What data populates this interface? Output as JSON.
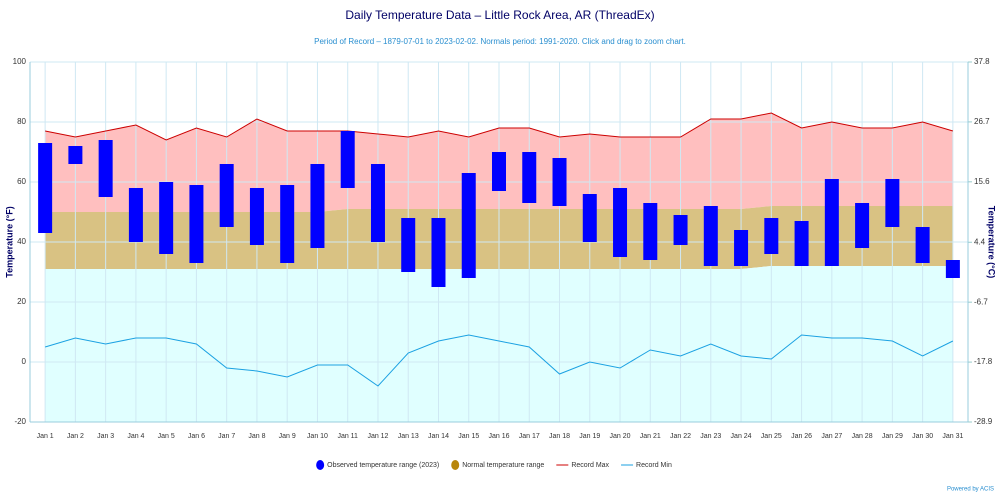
{
  "chart_data": {
    "type": "temperature-range",
    "title": "Daily Temperature Data – Little Rock Area, AR (ThreadEx)",
    "subtitle": "Period of Record – 1879-07-01 to 2023-02-02. Normals period: 1991-2020. Click and drag to zoom chart.",
    "ylabel": "Temperature (°F)",
    "y2label": "Temperature (°C)",
    "footer": "Powered by ACIS",
    "categories": [
      "Jan 1",
      "Jan 2",
      "Jan 3",
      "Jan 4",
      "Jan 5",
      "Jan 6",
      "Jan 7",
      "Jan 8",
      "Jan 9",
      "Jan 10",
      "Jan 11",
      "Jan 12",
      "Jan 13",
      "Jan 14",
      "Jan 15",
      "Jan 16",
      "Jan 17",
      "Jan 18",
      "Jan 19",
      "Jan 20",
      "Jan 21",
      "Jan 22",
      "Jan 23",
      "Jan 24",
      "Jan 25",
      "Jan 26",
      "Jan 27",
      "Jan 28",
      "Jan 29",
      "Jan 30",
      "Jan 31"
    ],
    "series": [
      {
        "name": "Observed temperature range (2023)",
        "color": "#0000ff",
        "low": [
          43,
          66,
          55,
          40,
          36,
          33,
          45,
          39,
          33,
          38,
          58,
          40,
          30,
          25,
          28,
          57,
          53,
          52,
          40,
          35,
          34,
          39,
          32,
          32,
          36,
          32,
          32,
          38,
          45,
          33,
          28
        ],
        "high": [
          73,
          72,
          74,
          58,
          60,
          59,
          66,
          58,
          59,
          66,
          77,
          66,
          48,
          48,
          63,
          70,
          70,
          68,
          56,
          58,
          53,
          49,
          52,
          44,
          48,
          47,
          61,
          53,
          61,
          45,
          34
        ]
      },
      {
        "name": "Normal temperature range",
        "color": "#b8860b",
        "fill": "#d9c283",
        "low": [
          31,
          31,
          31,
          31,
          31,
          31,
          31,
          31,
          31,
          31,
          31,
          31,
          31,
          31,
          31,
          31,
          31,
          31,
          31,
          31,
          31,
          31,
          31,
          31,
          32,
          32,
          32,
          32,
          32,
          32,
          32
        ],
        "high": [
          50,
          50,
          50,
          50,
          50,
          50,
          50,
          50,
          50,
          50,
          51,
          51,
          51,
          51,
          51,
          51,
          51,
          51,
          51,
          51,
          51,
          51,
          51,
          51,
          52,
          52,
          52,
          52,
          52,
          52,
          52
        ]
      },
      {
        "name": "Record Max",
        "color": "#cc0000",
        "fill": "#ffbfbf",
        "values": [
          77,
          75,
          77,
          79,
          74,
          78,
          75,
          81,
          77,
          77,
          77,
          76,
          75,
          77,
          75,
          78,
          78,
          75,
          76,
          75,
          75,
          75,
          81,
          81,
          83,
          78,
          80,
          78,
          78,
          80,
          77
        ]
      },
      {
        "name": "Record Min",
        "color": "#1ba1e2",
        "fill": "#e0ffff",
        "values": [
          5,
          8,
          6,
          8,
          8,
          6,
          -2,
          -3,
          -5,
          -1,
          -1,
          -8,
          3,
          7,
          9,
          7,
          5,
          -4,
          0,
          -2,
          4,
          2,
          6,
          2,
          1,
          9,
          8,
          8,
          7,
          2,
          7
        ]
      }
    ],
    "ylim": [
      -20,
      100
    ],
    "yticks": [
      -20,
      0,
      20,
      40,
      60,
      80,
      100
    ],
    "y2lim": [
      -28.9,
      37.8
    ],
    "y2ticks": [
      -28.9,
      -17.8,
      -6.7,
      4.4,
      15.6,
      26.7,
      37.8
    ],
    "grid": true
  }
}
